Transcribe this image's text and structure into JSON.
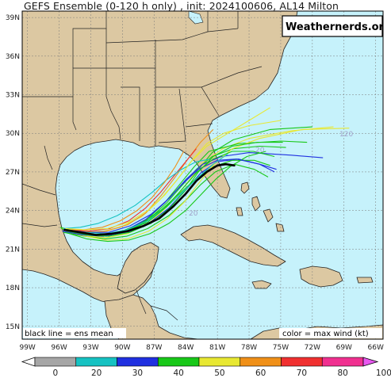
{
  "title": "GEFS Ensemble (0-120 h only) , init: 2024100606, AL14 Milton",
  "brand": "Weathernerds.org",
  "note_left": "black line = ens mean",
  "note_right": "color = max wind (kt)",
  "hour_labels": [
    "120",
    "20",
    "20"
  ],
  "colors": {
    "ocean": "#c6f2fb",
    "land": "#dcc8a2",
    "ens_mean": "#000000"
  },
  "chart_data": {
    "type": "map",
    "lat_ticks": [
      "39N",
      "36N",
      "33N",
      "30N",
      "27N",
      "24N",
      "21N",
      "18N",
      "15N"
    ],
    "lat_values": [
      39,
      36,
      33,
      30,
      27,
      24,
      21,
      18,
      15
    ],
    "lon_ticks": [
      "99W",
      "96W",
      "93W",
      "90W",
      "87W",
      "84W",
      "81W",
      "78W",
      "75W",
      "72W",
      "69W",
      "66W"
    ],
    "lon_values": [
      -99,
      -96,
      -93,
      -90,
      -87,
      -84,
      -81,
      -78,
      -75,
      -72,
      -69,
      -66
    ],
    "lat_range": [
      14,
      39.5
    ],
    "lon_range": [
      -99.5,
      -65.3
    ],
    "colorbar": {
      "labels": [
        "0",
        "20",
        "30",
        "40",
        "50",
        "60",
        "70",
        "80",
        "100"
      ],
      "bins": [
        {
          "from": 0,
          "to": 20,
          "color": "#a6a6a6"
        },
        {
          "from": 20,
          "to": 30,
          "color": "#16c2c2"
        },
        {
          "from": 30,
          "to": 40,
          "color": "#2030e0"
        },
        {
          "from": 40,
          "to": 50,
          "color": "#18c818"
        },
        {
          "from": 50,
          "to": 60,
          "color": "#e8e832"
        },
        {
          "from": 60,
          "to": 70,
          "color": "#f09018"
        },
        {
          "from": 70,
          "to": 80,
          "color": "#f03030"
        },
        {
          "from": 80,
          "to": 100,
          "color": "#f03090"
        },
        {
          "from": 100,
          "to": 110,
          "color": "#e858f0"
        }
      ]
    },
    "ensemble_mean": [
      [
        -95.5,
        22.5
      ],
      [
        -94.0,
        22.3
      ],
      [
        -92.5,
        22.1
      ],
      [
        -91.0,
        22.2
      ],
      [
        -89.5,
        22.4
      ],
      [
        -88.0,
        22.8
      ],
      [
        -86.5,
        23.4
      ],
      [
        -85.2,
        24.3
      ],
      [
        -84.0,
        25.3
      ],
      [
        -83.0,
        26.3
      ],
      [
        -82.0,
        27.0
      ],
      [
        -81.0,
        27.5
      ],
      [
        -80.2,
        27.6
      ],
      [
        -79.4,
        27.5
      ]
    ],
    "members": [
      {
        "color": "#18c818",
        "track": [
          [
            -95.8,
            22.6
          ],
          [
            -94.0,
            22.2
          ],
          [
            -92.0,
            22.0
          ],
          [
            -90.0,
            22.3
          ],
          [
            -88.0,
            23.0
          ],
          [
            -86.0,
            24.2
          ],
          [
            -84.5,
            25.5
          ],
          [
            -83.0,
            27.0
          ],
          [
            -81.5,
            28.5
          ],
          [
            -79.5,
            29.5
          ],
          [
            -76.0,
            30.3
          ],
          [
            -72.0,
            30.5
          ]
        ]
      },
      {
        "color": "#e8e832",
        "track": [
          [
            -95.5,
            22.5
          ],
          [
            -93.5,
            22.0
          ],
          [
            -91.5,
            21.9
          ],
          [
            -89.5,
            22.2
          ],
          [
            -87.5,
            23.0
          ],
          [
            -85.5,
            24.5
          ],
          [
            -84.0,
            26.0
          ],
          [
            -82.5,
            27.6
          ],
          [
            -80.5,
            28.8
          ],
          [
            -78.0,
            29.6
          ],
          [
            -74.0,
            30.2
          ],
          [
            -70.0,
            30.5
          ]
        ]
      },
      {
        "color": "#18c818",
        "track": [
          [
            -95.6,
            22.4
          ],
          [
            -93.8,
            22.1
          ],
          [
            -91.8,
            22.0
          ],
          [
            -89.8,
            22.4
          ],
          [
            -87.8,
            23.2
          ],
          [
            -86.0,
            24.6
          ],
          [
            -84.6,
            26.0
          ],
          [
            -83.2,
            27.4
          ],
          [
            -81.8,
            28.6
          ],
          [
            -79.0,
            29.2
          ],
          [
            -75.0,
            29.4
          ],
          [
            -72.5,
            29.3
          ]
        ]
      },
      {
        "color": "#18c818",
        "track": [
          [
            -95.4,
            22.5
          ],
          [
            -93.5,
            22.2
          ],
          [
            -91.5,
            22.1
          ],
          [
            -89.5,
            22.5
          ],
          [
            -87.5,
            23.3
          ],
          [
            -85.8,
            24.6
          ],
          [
            -84.4,
            25.9
          ],
          [
            -83.0,
            27.2
          ],
          [
            -81.5,
            28.2
          ],
          [
            -79.5,
            28.8
          ],
          [
            -77.0,
            29.0
          ],
          [
            -74.5,
            28.9
          ]
        ]
      },
      {
        "color": "#e8e832",
        "track": [
          [
            -95.7,
            22.6
          ],
          [
            -94.0,
            22.4
          ],
          [
            -92.2,
            22.3
          ],
          [
            -90.2,
            22.7
          ],
          [
            -88.2,
            23.5
          ],
          [
            -86.5,
            24.8
          ],
          [
            -85.0,
            26.2
          ],
          [
            -83.5,
            27.8
          ],
          [
            -82.0,
            29.0
          ],
          [
            -80.0,
            30.0
          ],
          [
            -78.0,
            31.0
          ],
          [
            -76.0,
            32.0
          ]
        ]
      },
      {
        "color": "#f09018",
        "track": [
          [
            -95.5,
            22.4
          ],
          [
            -93.5,
            22.3
          ],
          [
            -91.5,
            22.4
          ],
          [
            -89.5,
            22.9
          ],
          [
            -87.8,
            23.8
          ],
          [
            -86.3,
            25.2
          ],
          [
            -85.0,
            26.6
          ],
          [
            -83.8,
            28.0
          ],
          [
            -82.6,
            29.3
          ],
          [
            -81.4,
            30.3
          ]
        ]
      },
      {
        "color": "#f03030",
        "track": [
          [
            -95.3,
            22.5
          ],
          [
            -93.2,
            22.4
          ],
          [
            -91.2,
            22.6
          ],
          [
            -89.4,
            23.2
          ],
          [
            -87.8,
            24.2
          ],
          [
            -86.4,
            25.4
          ],
          [
            -85.2,
            26.6
          ],
          [
            -84.0,
            27.8
          ],
          [
            -83.0,
            28.8
          ]
        ]
      },
      {
        "color": "#18c818",
        "track": [
          [
            -95.6,
            22.3
          ],
          [
            -93.6,
            22.0
          ],
          [
            -91.6,
            21.8
          ],
          [
            -89.6,
            22.0
          ],
          [
            -87.6,
            22.6
          ],
          [
            -85.6,
            23.6
          ],
          [
            -84.0,
            24.8
          ],
          [
            -82.6,
            26.0
          ],
          [
            -81.2,
            27.0
          ],
          [
            -79.4,
            27.6
          ],
          [
            -77.5,
            27.2
          ],
          [
            -76.2,
            26.6
          ]
        ]
      },
      {
        "color": "#2030e0",
        "track": [
          [
            -95.5,
            22.4
          ],
          [
            -93.5,
            22.1
          ],
          [
            -91.5,
            22.0
          ],
          [
            -89.5,
            22.3
          ],
          [
            -87.5,
            23.0
          ],
          [
            -85.6,
            24.2
          ],
          [
            -84.0,
            25.6
          ],
          [
            -82.6,
            26.9
          ],
          [
            -81.0,
            27.8
          ],
          [
            -79.0,
            28.0
          ],
          [
            -77.0,
            27.6
          ],
          [
            -75.6,
            27.0
          ]
        ]
      },
      {
        "color": "#2030e0",
        "track": [
          [
            -95.3,
            22.5
          ],
          [
            -93.3,
            22.3
          ],
          [
            -91.3,
            22.3
          ],
          [
            -89.3,
            22.8
          ],
          [
            -87.3,
            23.7
          ],
          [
            -85.5,
            25.0
          ],
          [
            -84.0,
            26.4
          ],
          [
            -82.4,
            27.6
          ],
          [
            -80.6,
            28.2
          ],
          [
            -78.0,
            28.5
          ],
          [
            -74.0,
            28.3
          ],
          [
            -71.0,
            28.1
          ]
        ]
      },
      {
        "color": "#18c818",
        "track": [
          [
            -95.9,
            22.7
          ],
          [
            -94.2,
            22.3
          ],
          [
            -92.3,
            22.1
          ],
          [
            -90.3,
            22.3
          ],
          [
            -88.3,
            23.0
          ],
          [
            -86.4,
            24.0
          ],
          [
            -84.6,
            25.3
          ],
          [
            -83.0,
            26.5
          ],
          [
            -81.4,
            27.4
          ],
          [
            -79.6,
            27.9
          ],
          [
            -77.5,
            27.9
          ],
          [
            -76.0,
            27.5
          ]
        ]
      },
      {
        "color": "#e8e832",
        "track": [
          [
            -95.5,
            22.4
          ],
          [
            -93.5,
            22.0
          ],
          [
            -91.5,
            21.7
          ],
          [
            -89.5,
            21.8
          ],
          [
            -87.5,
            22.4
          ],
          [
            -85.7,
            23.4
          ],
          [
            -84.1,
            24.7
          ],
          [
            -82.7,
            26.2
          ],
          [
            -81.3,
            27.6
          ],
          [
            -79.6,
            28.8
          ],
          [
            -77.0,
            29.6
          ],
          [
            -73.0,
            30.3
          ],
          [
            -68.5,
            30.4
          ]
        ]
      },
      {
        "color": "#16c2c2",
        "track": [
          [
            -95.6,
            22.6
          ],
          [
            -94.0,
            22.7
          ],
          [
            -92.3,
            23.0
          ],
          [
            -90.5,
            23.6
          ],
          [
            -88.8,
            24.4
          ],
          [
            -87.2,
            25.4
          ],
          [
            -85.8,
            26.4
          ],
          [
            -84.4,
            27.2
          ],
          [
            -83.0,
            27.8
          ],
          [
            -81.6,
            28.0
          ]
        ]
      },
      {
        "color": "#18c818",
        "track": [
          [
            -95.4,
            22.3
          ],
          [
            -93.4,
            21.8
          ],
          [
            -91.4,
            21.6
          ],
          [
            -89.4,
            21.7
          ],
          [
            -87.4,
            22.2
          ],
          [
            -85.6,
            23.0
          ],
          [
            -84.0,
            24.0
          ],
          [
            -82.6,
            25.2
          ],
          [
            -81.2,
            26.4
          ],
          [
            -79.8,
            27.4
          ],
          [
            -78.2,
            28.2
          ],
          [
            -76.4,
            28.6
          ]
        ]
      },
      {
        "color": "#f09018",
        "track": [
          [
            -95.5,
            22.5
          ],
          [
            -93.7,
            22.5
          ],
          [
            -91.9,
            22.7
          ],
          [
            -90.2,
            23.2
          ],
          [
            -88.6,
            24.0
          ],
          [
            -87.2,
            25.0
          ],
          [
            -86.0,
            26.2
          ],
          [
            -85.0,
            27.4
          ],
          [
            -84.2,
            28.6
          ]
        ]
      },
      {
        "color": "#2030e0",
        "track": [
          [
            -95.7,
            22.4
          ],
          [
            -93.8,
            22.1
          ],
          [
            -91.8,
            22.0
          ],
          [
            -89.8,
            22.4
          ],
          [
            -87.8,
            23.3
          ],
          [
            -86.0,
            24.6
          ],
          [
            -84.4,
            26.0
          ],
          [
            -82.8,
            27.2
          ],
          [
            -81.0,
            27.9
          ],
          [
            -79.2,
            28.0
          ],
          [
            -77.0,
            27.6
          ],
          [
            -75.4,
            27.2
          ]
        ]
      },
      {
        "color": "#18c818",
        "track": [
          [
            -95.3,
            22.4
          ],
          [
            -93.3,
            22.1
          ],
          [
            -91.3,
            22.0
          ],
          [
            -89.3,
            22.3
          ],
          [
            -87.3,
            23.0
          ],
          [
            -85.5,
            24.2
          ],
          [
            -84.0,
            25.6
          ],
          [
            -82.8,
            27.0
          ],
          [
            -81.4,
            28.2
          ],
          [
            -79.6,
            29.0
          ],
          [
            -77.2,
            29.3
          ],
          [
            -74.8,
            29.3
          ]
        ]
      },
      {
        "color": "#e8e832",
        "track": [
          [
            -95.4,
            22.6
          ],
          [
            -93.4,
            22.5
          ],
          [
            -91.4,
            22.6
          ],
          [
            -89.4,
            23.1
          ],
          [
            -87.6,
            24.0
          ],
          [
            -86.0,
            25.2
          ],
          [
            -84.6,
            26.6
          ],
          [
            -83.3,
            28.0
          ],
          [
            -82.0,
            29.2
          ],
          [
            -80.4,
            30.0
          ],
          [
            -78.0,
            30.6
          ],
          [
            -75.0,
            31.0
          ]
        ]
      },
      {
        "color": "#16c2c2",
        "track": [
          [
            -95.6,
            22.5
          ],
          [
            -93.6,
            22.3
          ],
          [
            -91.6,
            22.2
          ],
          [
            -89.6,
            22.5
          ],
          [
            -87.6,
            23.2
          ],
          [
            -85.8,
            24.3
          ],
          [
            -84.2,
            25.5
          ],
          [
            -82.8,
            26.6
          ],
          [
            -81.4,
            27.6
          ],
          [
            -80.0,
            28.4
          ]
        ]
      },
      {
        "color": "#18c818",
        "track": [
          [
            -95.5,
            22.5
          ],
          [
            -93.6,
            22.2
          ],
          [
            -91.6,
            22.1
          ],
          [
            -89.6,
            22.4
          ],
          [
            -87.6,
            23.1
          ],
          [
            -85.8,
            24.3
          ],
          [
            -84.3,
            25.7
          ],
          [
            -82.9,
            27.0
          ],
          [
            -81.4,
            28.0
          ],
          [
            -79.6,
            28.6
          ],
          [
            -77.6,
            28.6
          ],
          [
            -75.6,
            28.2
          ]
        ]
      }
    ]
  }
}
